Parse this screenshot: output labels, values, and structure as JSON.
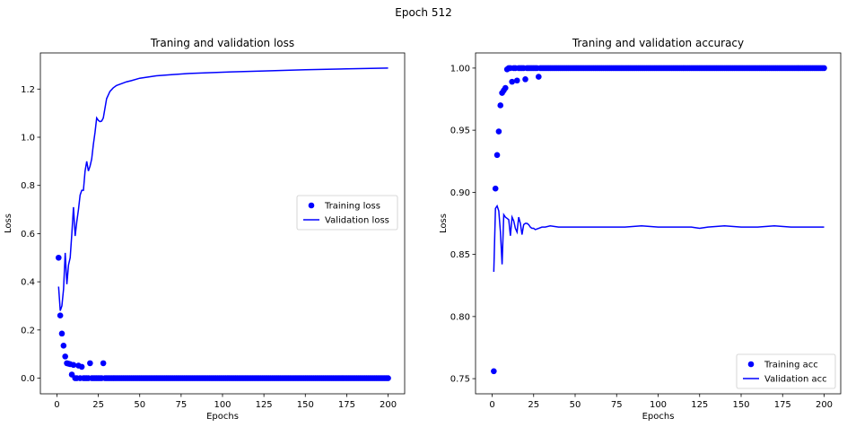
{
  "suptitle": "Epoch 512",
  "chart_data": [
    {
      "type": "scatter+line",
      "title": "Traning and validation loss",
      "xlabel": "Epochs",
      "ylabel": "Loss",
      "xlim": [
        -10,
        210
      ],
      "ylim": [
        -0.065,
        1.35
      ],
      "xticks": [
        0,
        25,
        50,
        75,
        100,
        125,
        150,
        175,
        200
      ],
      "yticks": [
        0.0,
        0.2,
        0.4,
        0.6,
        0.8,
        1.0,
        1.2
      ],
      "ytick_decimals": 1,
      "grid": false,
      "legend_loc": "center-right",
      "series": [
        {
          "name": "Training loss",
          "style": "points",
          "color": "#0000ff",
          "x": [
            1,
            2,
            3,
            4,
            5,
            6,
            7,
            8,
            9,
            10,
            11,
            12,
            13,
            14,
            15,
            16,
            17,
            18,
            19,
            20,
            21,
            22,
            23,
            24,
            25,
            26,
            27,
            28,
            29,
            30
          ],
          "y": [
            0.5,
            0.26,
            0.185,
            0.135,
            0.09,
            0.062,
            0.06,
            0.058,
            0.015,
            0.055,
            0.0,
            0.0,
            0.052,
            0.0,
            0.047,
            0.0,
            0.0,
            0.0,
            0.0,
            0.062,
            0.0,
            0.0,
            0.0,
            0.0,
            0.0,
            0.0,
            0.0,
            0.062,
            0.0,
            0.0
          ],
          "tail_from": 31,
          "tail_to": 200,
          "tail_value": 0.0
        },
        {
          "name": "Validation loss",
          "style": "line",
          "color": "#0000ff",
          "x": [
            1,
            2,
            3,
            4,
            5,
            6,
            7,
            8,
            9,
            10,
            11,
            12,
            13,
            14,
            15,
            16,
            17,
            18,
            19,
            20,
            21,
            22,
            23,
            24,
            25,
            26,
            27,
            28,
            29,
            30,
            32,
            34,
            36,
            38,
            40,
            42,
            45,
            50,
            55,
            60,
            70,
            80,
            100,
            125,
            150,
            175,
            200
          ],
          "y": [
            0.38,
            0.28,
            0.3,
            0.37,
            0.52,
            0.39,
            0.47,
            0.5,
            0.6,
            0.71,
            0.59,
            0.65,
            0.7,
            0.76,
            0.78,
            0.78,
            0.86,
            0.9,
            0.86,
            0.88,
            0.91,
            0.97,
            1.02,
            1.08,
            1.07,
            1.065,
            1.067,
            1.08,
            1.12,
            1.16,
            1.19,
            1.205,
            1.215,
            1.22,
            1.225,
            1.23,
            1.235,
            1.245,
            1.25,
            1.255,
            1.26,
            1.265,
            1.27,
            1.275,
            1.28,
            1.284,
            1.287
          ]
        }
      ]
    },
    {
      "type": "scatter+line",
      "title": "Traning and validation accuracy",
      "xlabel": "Epochs",
      "ylabel": "Loss",
      "xlim": [
        -10,
        210
      ],
      "ylim": [
        0.7378,
        1.0122
      ],
      "xticks": [
        0,
        25,
        50,
        75,
        100,
        125,
        150,
        175,
        200
      ],
      "yticks": [
        0.75,
        0.8,
        0.85,
        0.9,
        0.95,
        1.0
      ],
      "ytick_decimals": 2,
      "grid": false,
      "legend_loc": "lower-right",
      "series": [
        {
          "name": "Training acc",
          "style": "points",
          "color": "#0000ff",
          "x": [
            1,
            2,
            3,
            4,
            5,
            6,
            7,
            8,
            9,
            10,
            11,
            12,
            13,
            14,
            15,
            16,
            17,
            18,
            19,
            20,
            21,
            22,
            23,
            24,
            25,
            26,
            27,
            28,
            29,
            30
          ],
          "y": [
            0.756,
            0.903,
            0.93,
            0.949,
            0.97,
            0.98,
            0.982,
            0.984,
            0.999,
            1.0,
            1.0,
            0.989,
            1.0,
            1.0,
            0.99,
            1.0,
            1.0,
            1.0,
            1.0,
            0.991,
            1.0,
            1.0,
            1.0,
            1.0,
            1.0,
            1.0,
            1.0,
            0.993,
            1.0,
            1.0
          ],
          "tail_from": 31,
          "tail_to": 200,
          "tail_value": 1.0
        },
        {
          "name": "Validation acc",
          "style": "line",
          "color": "#0000ff",
          "x": [
            1,
            2,
            3,
            4,
            5,
            6,
            7,
            8,
            9,
            10,
            11,
            12,
            13,
            14,
            15,
            16,
            17,
            18,
            19,
            20,
            21,
            22,
            23,
            24,
            25,
            26,
            28,
            30,
            32,
            35,
            40,
            50,
            60,
            70,
            80,
            90,
            100,
            110,
            120,
            125,
            130,
            140,
            150,
            160,
            170,
            180,
            190,
            200
          ],
          "y": [
            0.836,
            0.887,
            0.889,
            0.885,
            0.868,
            0.842,
            0.882,
            0.88,
            0.879,
            0.878,
            0.865,
            0.88,
            0.877,
            0.871,
            0.868,
            0.88,
            0.875,
            0.866,
            0.874,
            0.875,
            0.875,
            0.874,
            0.872,
            0.871,
            0.871,
            0.87,
            0.871,
            0.872,
            0.872,
            0.873,
            0.872,
            0.872,
            0.872,
            0.872,
            0.872,
            0.873,
            0.872,
            0.872,
            0.872,
            0.871,
            0.872,
            0.873,
            0.872,
            0.872,
            0.873,
            0.872,
            0.872,
            0.872
          ]
        }
      ]
    }
  ]
}
